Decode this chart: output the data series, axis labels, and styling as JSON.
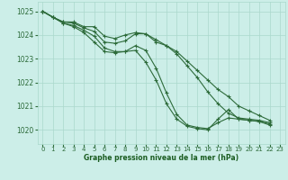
{
  "bg_color": "#cceee8",
  "grid_color": "#aad8cc",
  "line_color": "#2d6b3a",
  "xlabel": "Graphe pression niveau de la mer (hPa)",
  "xlabel_color": "#1a5c20",
  "ylabel_ticks": [
    1020,
    1021,
    1022,
    1023,
    1024,
    1025
  ],
  "xlim": [
    -0.5,
    23.5
  ],
  "ylim": [
    1019.4,
    1025.4
  ],
  "xticks": [
    0,
    1,
    2,
    3,
    4,
    5,
    6,
    7,
    8,
    9,
    10,
    11,
    12,
    13,
    14,
    15,
    16,
    17,
    18,
    19,
    20,
    21,
    22,
    23
  ],
  "series": [
    {
      "x": [
        0,
        1,
        2,
        3,
        4,
        5,
        6,
        7,
        8,
        9,
        10,
        11,
        12,
        13,
        14,
        15,
        16,
        17,
        18,
        19,
        20,
        21,
        22
      ],
      "y": [
        1025.0,
        1024.75,
        1024.55,
        1024.55,
        1024.35,
        1024.35,
        1023.95,
        1023.85,
        1024.0,
        1024.1,
        1024.05,
        1023.7,
        1023.55,
        1023.3,
        1022.9,
        1022.5,
        1022.1,
        1021.7,
        1021.4,
        1021.0,
        1020.8,
        1020.6,
        1020.4
      ]
    },
    {
      "x": [
        0,
        1,
        2,
        3,
        4,
        5,
        6,
        7,
        8,
        9,
        10,
        11,
        12,
        13,
        14,
        15,
        16,
        17,
        18,
        19,
        20,
        21,
        22
      ],
      "y": [
        1025.0,
        1024.75,
        1024.55,
        1024.5,
        1024.3,
        1024.15,
        1023.7,
        1023.65,
        1023.75,
        1024.05,
        1024.05,
        1023.8,
        1023.55,
        1023.2,
        1022.7,
        1022.2,
        1021.6,
        1021.1,
        1020.7,
        1020.5,
        1020.45,
        1020.4,
        1020.3
      ]
    },
    {
      "x": [
        0,
        1,
        2,
        3,
        4,
        5,
        6,
        7,
        8,
        9,
        10,
        11,
        12,
        13,
        14,
        15,
        16,
        17,
        18,
        19,
        20,
        21,
        22
      ],
      "y": [
        1025.0,
        1024.75,
        1024.5,
        1024.4,
        1024.2,
        1023.95,
        1023.45,
        1023.3,
        1023.3,
        1023.55,
        1023.35,
        1022.6,
        1021.55,
        1020.65,
        1020.2,
        1020.1,
        1020.05,
        1020.3,
        1020.5,
        1020.45,
        1020.4,
        1020.35,
        1020.25
      ]
    },
    {
      "x": [
        0,
        1,
        2,
        3,
        4,
        5,
        6,
        7,
        8,
        9,
        10,
        11,
        12,
        13,
        14,
        15,
        16,
        17,
        18,
        19,
        20,
        21,
        22
      ],
      "y": [
        1025.0,
        1024.75,
        1024.5,
        1024.35,
        1024.1,
        1023.7,
        1023.3,
        1023.25,
        1023.3,
        1023.35,
        1022.85,
        1022.1,
        1021.1,
        1020.45,
        1020.15,
        1020.05,
        1020.0,
        1020.45,
        1020.85,
        1020.45,
        1020.4,
        1020.35,
        1020.2
      ]
    }
  ]
}
